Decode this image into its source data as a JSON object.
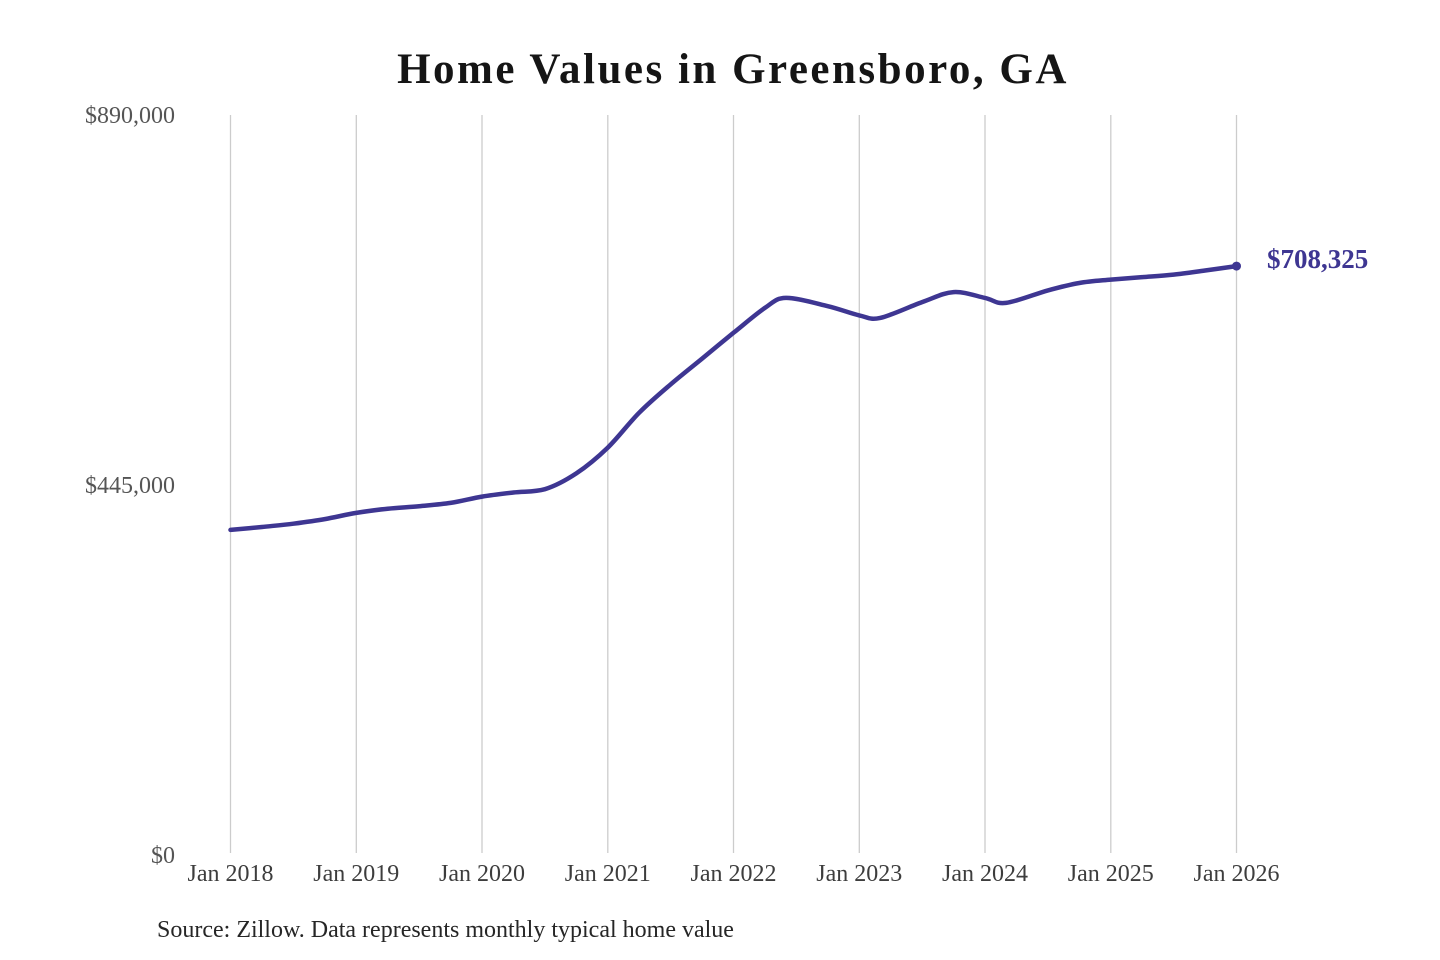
{
  "chart": {
    "title": "Home Values in Greensboro, GA",
    "source_note": "Source: Zillow. Data represents monthly typical home value",
    "end_label": "$708,325",
    "colors": {
      "background": "#ffffff",
      "line": "#3e3692",
      "end_label": "#3e3692",
      "grid": "#cccccc",
      "title": "#151515",
      "y_tick": "#555555",
      "x_tick": "#3d3d3d",
      "source": "#262626"
    }
  },
  "chart_data": {
    "type": "line",
    "title": "Home Values in Greensboro, GA",
    "series_name": "Monthly typical home value (USD)",
    "xlabel": "",
    "ylabel": "",
    "ylim": [
      0,
      890000
    ],
    "grid": "vertical-only",
    "legend": "none",
    "x_tick_labels": [
      "Jan 2018",
      "Jan 2019",
      "Jan 2020",
      "Jan 2021",
      "Jan 2022",
      "Jan 2023",
      "Jan 2024",
      "Jan 2025",
      "Jan 2026"
    ],
    "y_ticks": [
      {
        "label": "$0",
        "value": 0
      },
      {
        "label": "$445,000",
        "value": 445000
      },
      {
        "label": "$890,000",
        "value": 890000
      }
    ],
    "end_annotation": {
      "label": "$708,325",
      "value": 708325,
      "x": "Jan 2026"
    },
    "points": [
      {
        "t": 0,
        "x": "Jan 2018",
        "value": 391000
      },
      {
        "t": 3,
        "x": "Apr 2018",
        "value": 394500
      },
      {
        "t": 6,
        "x": "Jul 2018",
        "value": 398500
      },
      {
        "t": 9,
        "x": "Oct 2018",
        "value": 404000
      },
      {
        "t": 12,
        "x": "Jan 2019",
        "value": 411500
      },
      {
        "t": 15,
        "x": "Apr 2019",
        "value": 416500
      },
      {
        "t": 18,
        "x": "Jul 2019",
        "value": 419500
      },
      {
        "t": 21,
        "x": "Oct 2019",
        "value": 423500
      },
      {
        "t": 24,
        "x": "Jan 2020",
        "value": 431000
      },
      {
        "t": 27,
        "x": "Apr 2020",
        "value": 436000
      },
      {
        "t": 30,
        "x": "Jul 2020",
        "value": 440000
      },
      {
        "t": 33,
        "x": "Oct 2020",
        "value": 459000
      },
      {
        "t": 36,
        "x": "Jan 2021",
        "value": 490000
      },
      {
        "t": 39,
        "x": "Apr 2021",
        "value": 532000
      },
      {
        "t": 42,
        "x": "Jul 2021",
        "value": 566000
      },
      {
        "t": 45,
        "x": "Oct 2021",
        "value": 597000
      },
      {
        "t": 48,
        "x": "Jan 2022",
        "value": 628000
      },
      {
        "t": 51,
        "x": "Apr 2022",
        "value": 658000
      },
      {
        "t": 53,
        "x": "Jun 2022",
        "value": 670000
      },
      {
        "t": 57,
        "x": "Oct 2022",
        "value": 660000
      },
      {
        "t": 60,
        "x": "Jan 2023",
        "value": 649000
      },
      {
        "t": 62,
        "x": "Mar 2023",
        "value": 646000
      },
      {
        "t": 66,
        "x": "Jul 2023",
        "value": 665000
      },
      {
        "t": 69,
        "x": "Oct 2023",
        "value": 677000
      },
      {
        "t": 72,
        "x": "Jan 2024",
        "value": 670000
      },
      {
        "t": 74,
        "x": "Mar 2024",
        "value": 664000
      },
      {
        "t": 78,
        "x": "Jul 2024",
        "value": 679000
      },
      {
        "t": 81,
        "x": "Oct 2024",
        "value": 688000
      },
      {
        "t": 84,
        "x": "Jan 2025",
        "value": 692000
      },
      {
        "t": 87,
        "x": "Apr 2025",
        "value": 695000
      },
      {
        "t": 90,
        "x": "Jul 2025",
        "value": 698000
      },
      {
        "t": 93,
        "x": "Oct 2025",
        "value": 703000
      },
      {
        "t": 96,
        "x": "Jan 2026",
        "value": 708325
      }
    ]
  }
}
